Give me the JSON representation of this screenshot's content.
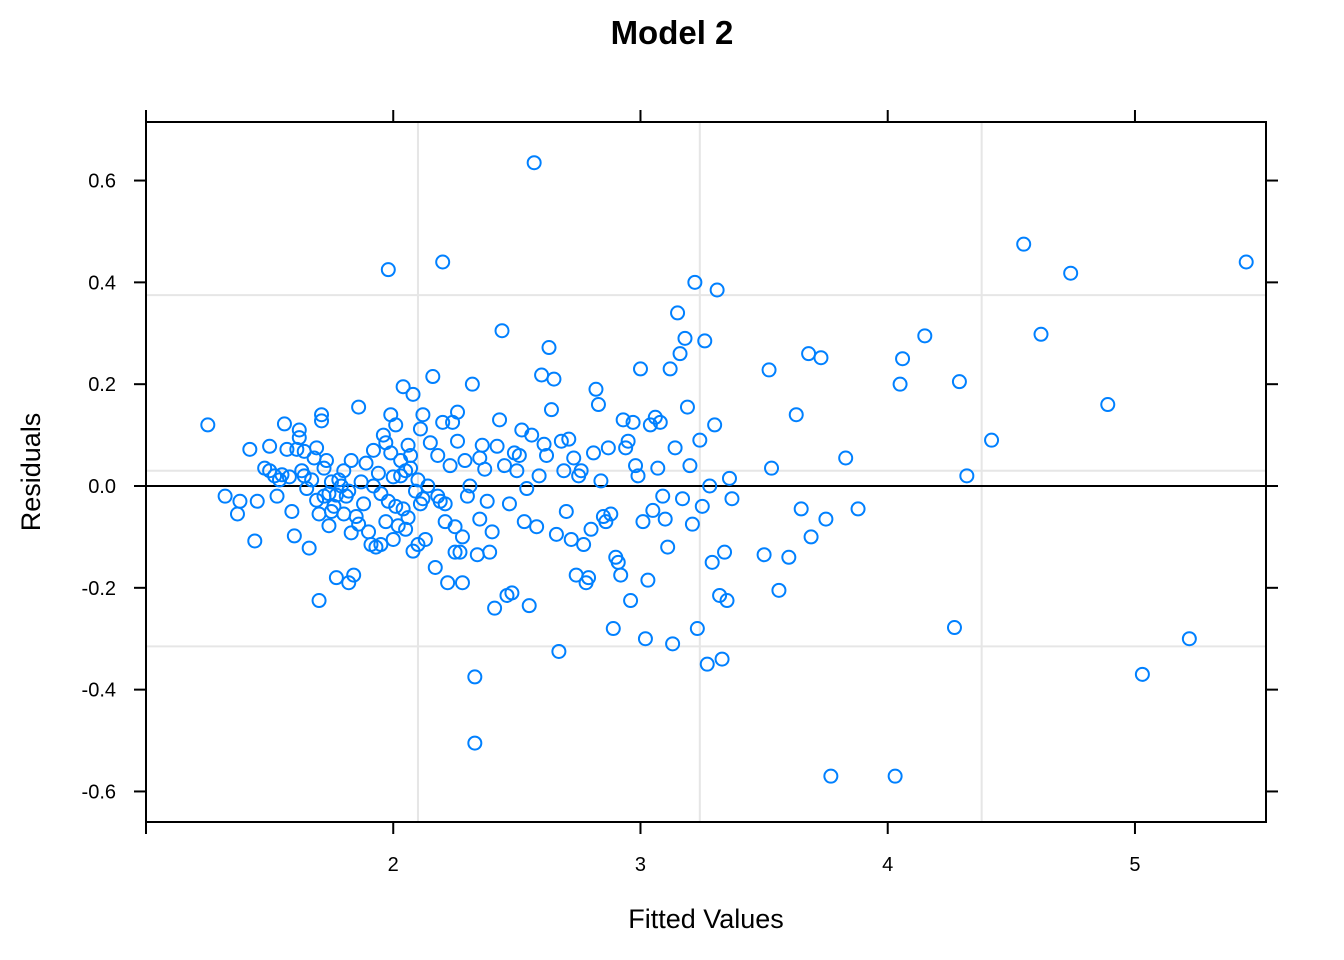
{
  "chart_data": {
    "type": "scatter",
    "title": "Model 2",
    "xlabel": "Fitted Values",
    "ylabel": "Residuals",
    "xlim": [
      1.0,
      5.53
    ],
    "ylim": [
      -0.66,
      0.715
    ],
    "x_ticks": [
      2,
      3,
      4,
      5
    ],
    "x_tick_labels": [
      "2",
      "3",
      "4",
      "5"
    ],
    "x_tick_marks_unlabeled": [
      1
    ],
    "y_ticks": [
      0.6,
      0.4,
      0.2,
      0.0,
      -0.2,
      -0.4,
      -0.6
    ],
    "y_tick_labels": [
      "0.6",
      "0.4",
      "0.2",
      "0.0",
      "-0.2",
      "-0.4",
      "-0.6"
    ],
    "grid_x": [
      2.1,
      3.24,
      4.38
    ],
    "grid_y": [
      0.375,
      0.03,
      -0.315
    ],
    "reference_line_y": 0,
    "point_color": "#0080ff",
    "grid_color": "#e6e6e6",
    "series": [
      {
        "name": "residuals",
        "points": [
          [
            1.25,
            0.12
          ],
          [
            1.32,
            -0.02
          ],
          [
            1.37,
            -0.055
          ],
          [
            1.38,
            -0.03
          ],
          [
            1.42,
            0.072
          ],
          [
            1.44,
            -0.108
          ],
          [
            1.45,
            -0.03
          ],
          [
            1.48,
            0.035
          ],
          [
            1.5,
            0.03
          ],
          [
            1.5,
            0.078
          ],
          [
            1.52,
            0.02
          ],
          [
            1.53,
            -0.02
          ],
          [
            1.54,
            0.012
          ],
          [
            1.55,
            0.022
          ],
          [
            1.56,
            0.122
          ],
          [
            1.57,
            0.072
          ],
          [
            1.58,
            0.018
          ],
          [
            1.59,
            -0.05
          ],
          [
            1.6,
            -0.098
          ],
          [
            1.61,
            0.072
          ],
          [
            1.62,
            0.11
          ],
          [
            1.62,
            0.095
          ],
          [
            1.63,
            0.03
          ],
          [
            1.64,
            0.068
          ],
          [
            1.64,
            0.02
          ],
          [
            1.65,
            -0.005
          ],
          [
            1.66,
            -0.122
          ],
          [
            1.67,
            0.012
          ],
          [
            1.68,
            0.055
          ],
          [
            1.69,
            0.075
          ],
          [
            1.69,
            -0.028
          ],
          [
            1.7,
            -0.055
          ],
          [
            1.7,
            -0.225
          ],
          [
            1.71,
            0.128
          ],
          [
            1.71,
            0.14
          ],
          [
            1.72,
            -0.02
          ],
          [
            1.72,
            0.035
          ],
          [
            1.73,
            0.05
          ],
          [
            1.74,
            -0.015
          ],
          [
            1.74,
            -0.078
          ],
          [
            1.75,
            0.008
          ],
          [
            1.75,
            -0.05
          ],
          [
            1.76,
            -0.04
          ],
          [
            1.77,
            -0.018
          ],
          [
            1.77,
            -0.18
          ],
          [
            1.78,
            0.012
          ],
          [
            1.79,
            0.0
          ],
          [
            1.8,
            -0.055
          ],
          [
            1.8,
            0.03
          ],
          [
            1.81,
            -0.02
          ],
          [
            1.82,
            -0.01
          ],
          [
            1.82,
            -0.19
          ],
          [
            1.83,
            -0.092
          ],
          [
            1.83,
            0.05
          ],
          [
            1.84,
            -0.175
          ],
          [
            1.85,
            -0.06
          ],
          [
            1.86,
            -0.075
          ],
          [
            1.86,
            0.155
          ],
          [
            1.87,
            0.008
          ],
          [
            1.88,
            -0.035
          ],
          [
            1.89,
            0.045
          ],
          [
            1.9,
            -0.09
          ],
          [
            1.91,
            -0.115
          ],
          [
            1.92,
            0.07
          ],
          [
            1.92,
            0.0
          ],
          [
            1.93,
            -0.12
          ],
          [
            1.94,
            0.025
          ],
          [
            1.95,
            -0.115
          ],
          [
            1.95,
            -0.015
          ],
          [
            1.96,
            0.1
          ],
          [
            1.97,
            -0.07
          ],
          [
            1.97,
            0.085
          ],
          [
            1.98,
            0.425
          ],
          [
            1.98,
            -0.03
          ],
          [
            1.99,
            0.065
          ],
          [
            1.99,
            0.14
          ],
          [
            2.0,
            -0.105
          ],
          [
            2.0,
            0.018
          ],
          [
            2.01,
            0.12
          ],
          [
            2.01,
            -0.04
          ],
          [
            2.02,
            -0.078
          ],
          [
            2.03,
            0.05
          ],
          [
            2.03,
            0.02
          ],
          [
            2.04,
            -0.045
          ],
          [
            2.04,
            0.195
          ],
          [
            2.05,
            0.03
          ],
          [
            2.05,
            -0.085
          ],
          [
            2.06,
            0.08
          ],
          [
            2.06,
            -0.062
          ],
          [
            2.07,
            0.035
          ],
          [
            2.07,
            0.06
          ],
          [
            2.08,
            -0.128
          ],
          [
            2.08,
            0.18
          ],
          [
            2.09,
            -0.01
          ],
          [
            2.1,
            0.012
          ],
          [
            2.1,
            -0.115
          ],
          [
            2.11,
            0.112
          ],
          [
            2.11,
            -0.035
          ],
          [
            2.12,
            0.14
          ],
          [
            2.12,
            -0.025
          ],
          [
            2.13,
            -0.105
          ],
          [
            2.14,
            0.0
          ],
          [
            2.15,
            0.085
          ],
          [
            2.16,
            0.215
          ],
          [
            2.17,
            -0.16
          ],
          [
            2.18,
            -0.02
          ],
          [
            2.18,
            0.06
          ],
          [
            2.19,
            -0.03
          ],
          [
            2.2,
            0.44
          ],
          [
            2.2,
            0.125
          ],
          [
            2.21,
            -0.035
          ],
          [
            2.21,
            -0.07
          ],
          [
            2.22,
            -0.19
          ],
          [
            2.23,
            0.04
          ],
          [
            2.24,
            0.125
          ],
          [
            2.25,
            -0.13
          ],
          [
            2.25,
            -0.08
          ],
          [
            2.26,
            0.145
          ],
          [
            2.26,
            0.088
          ],
          [
            2.27,
            -0.13
          ],
          [
            2.28,
            -0.1
          ],
          [
            2.28,
            -0.19
          ],
          [
            2.29,
            0.05
          ],
          [
            2.3,
            -0.02
          ],
          [
            2.31,
            0.0
          ],
          [
            2.32,
            0.2
          ],
          [
            2.33,
            -0.375
          ],
          [
            2.33,
            -0.505
          ],
          [
            2.34,
            -0.135
          ],
          [
            2.35,
            -0.065
          ],
          [
            2.35,
            0.055
          ],
          [
            2.36,
            0.08
          ],
          [
            2.37,
            0.033
          ],
          [
            2.38,
            -0.03
          ],
          [
            2.39,
            -0.13
          ],
          [
            2.4,
            -0.09
          ],
          [
            2.41,
            -0.24
          ],
          [
            2.42,
            0.078
          ],
          [
            2.43,
            0.13
          ],
          [
            2.44,
            0.305
          ],
          [
            2.45,
            0.04
          ],
          [
            2.46,
            -0.215
          ],
          [
            2.47,
            -0.035
          ],
          [
            2.48,
            -0.21
          ],
          [
            2.49,
            0.065
          ],
          [
            2.5,
            0.03
          ],
          [
            2.51,
            0.06
          ],
          [
            2.52,
            0.11
          ],
          [
            2.53,
            -0.07
          ],
          [
            2.54,
            -0.005
          ],
          [
            2.55,
            -0.235
          ],
          [
            2.56,
            0.1
          ],
          [
            2.57,
            0.635
          ],
          [
            2.58,
            -0.08
          ],
          [
            2.59,
            0.02
          ],
          [
            2.6,
            0.218
          ],
          [
            2.61,
            0.082
          ],
          [
            2.62,
            0.06
          ],
          [
            2.63,
            0.272
          ],
          [
            2.64,
            0.15
          ],
          [
            2.65,
            0.21
          ],
          [
            2.66,
            -0.095
          ],
          [
            2.67,
            -0.325
          ],
          [
            2.68,
            0.088
          ],
          [
            2.69,
            0.03
          ],
          [
            2.7,
            -0.05
          ],
          [
            2.71,
            0.092
          ],
          [
            2.72,
            -0.105
          ],
          [
            2.73,
            0.055
          ],
          [
            2.74,
            -0.175
          ],
          [
            2.75,
            0.02
          ],
          [
            2.76,
            0.03
          ],
          [
            2.77,
            -0.115
          ],
          [
            2.78,
            -0.19
          ],
          [
            2.79,
            -0.18
          ],
          [
            2.8,
            -0.085
          ],
          [
            2.81,
            0.065
          ],
          [
            2.82,
            0.19
          ],
          [
            2.83,
            0.16
          ],
          [
            2.84,
            0.01
          ],
          [
            2.85,
            -0.06
          ],
          [
            2.86,
            -0.07
          ],
          [
            2.87,
            0.075
          ],
          [
            2.88,
            -0.055
          ],
          [
            2.89,
            -0.28
          ],
          [
            2.9,
            -0.14
          ],
          [
            2.91,
            -0.15
          ],
          [
            2.92,
            -0.175
          ],
          [
            2.93,
            0.13
          ],
          [
            2.94,
            0.075
          ],
          [
            2.95,
            0.088
          ],
          [
            2.96,
            -0.225
          ],
          [
            2.97,
            0.125
          ],
          [
            2.98,
            0.04
          ],
          [
            2.99,
            0.02
          ],
          [
            3.0,
            0.23
          ],
          [
            3.01,
            -0.07
          ],
          [
            3.02,
            -0.3
          ],
          [
            3.03,
            -0.185
          ],
          [
            3.04,
            0.12
          ],
          [
            3.05,
            -0.048
          ],
          [
            3.06,
            0.135
          ],
          [
            3.07,
            0.035
          ],
          [
            3.08,
            0.125
          ],
          [
            3.09,
            -0.02
          ],
          [
            3.1,
            -0.065
          ],
          [
            3.11,
            -0.12
          ],
          [
            3.12,
            0.23
          ],
          [
            3.13,
            -0.31
          ],
          [
            3.14,
            0.075
          ],
          [
            3.15,
            0.34
          ],
          [
            3.16,
            0.26
          ],
          [
            3.17,
            -0.025
          ],
          [
            3.18,
            0.29
          ],
          [
            3.19,
            0.155
          ],
          [
            3.2,
            0.04
          ],
          [
            3.21,
            -0.075
          ],
          [
            3.22,
            0.4
          ],
          [
            3.23,
            -0.28
          ],
          [
            3.24,
            0.09
          ],
          [
            3.25,
            -0.04
          ],
          [
            3.26,
            0.285
          ],
          [
            3.27,
            -0.35
          ],
          [
            3.28,
            0.0
          ],
          [
            3.29,
            -0.15
          ],
          [
            3.3,
            0.12
          ],
          [
            3.31,
            0.385
          ],
          [
            3.32,
            -0.215
          ],
          [
            3.33,
            -0.34
          ],
          [
            3.34,
            -0.13
          ],
          [
            3.35,
            -0.225
          ],
          [
            3.36,
            0.015
          ],
          [
            3.37,
            -0.025
          ],
          [
            3.5,
            -0.135
          ],
          [
            3.52,
            0.228
          ],
          [
            3.53,
            0.035
          ],
          [
            3.56,
            -0.205
          ],
          [
            3.6,
            -0.14
          ],
          [
            3.63,
            0.14
          ],
          [
            3.65,
            -0.045
          ],
          [
            3.68,
            0.26
          ],
          [
            3.69,
            -0.1
          ],
          [
            3.73,
            0.252
          ],
          [
            3.75,
            -0.065
          ],
          [
            3.77,
            -0.57
          ],
          [
            3.83,
            0.055
          ],
          [
            3.88,
            -0.045
          ],
          [
            4.03,
            -0.57
          ],
          [
            4.05,
            0.2
          ],
          [
            4.06,
            0.25
          ],
          [
            4.15,
            0.295
          ],
          [
            4.27,
            -0.278
          ],
          [
            4.29,
            0.205
          ],
          [
            4.32,
            0.02
          ],
          [
            4.42,
            0.09
          ],
          [
            4.55,
            0.475
          ],
          [
            4.62,
            0.298
          ],
          [
            4.74,
            0.418
          ],
          [
            4.89,
            0.16
          ],
          [
            5.03,
            -0.37
          ],
          [
            5.22,
            -0.3
          ],
          [
            5.45,
            0.44
          ]
        ]
      }
    ]
  }
}
